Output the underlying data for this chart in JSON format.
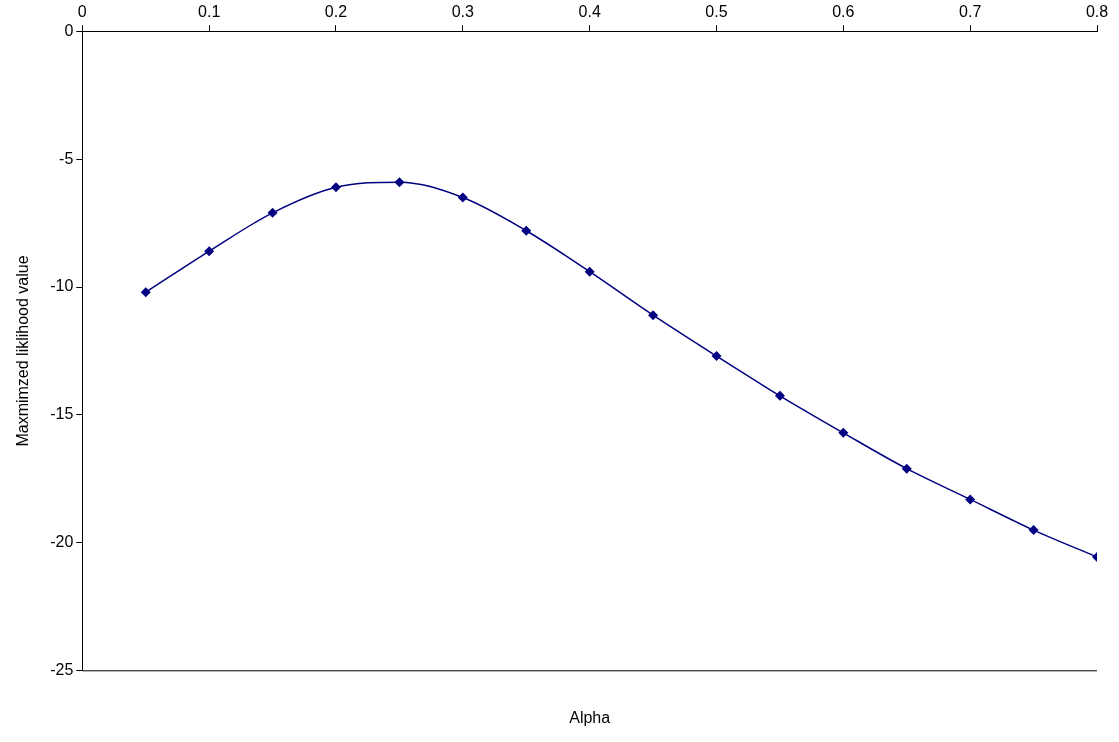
{
  "chart_data": {
    "type": "line",
    "xlabel": "Alpha",
    "ylabel": "Maxmimzed liklihood value",
    "x": [
      0.05,
      0.1,
      0.15,
      0.2,
      0.25,
      0.3,
      0.35,
      0.4,
      0.45,
      0.5,
      0.55,
      0.6,
      0.65,
      0.7,
      0.75,
      0.8
    ],
    "series": [
      {
        "color": "#000080",
        "values": [
          -10.2,
          -8.6,
          -7.1,
          -6.1,
          -5.9,
          -6.5,
          -7.8,
          -9.4,
          -11.1,
          -12.7,
          -14.25,
          -15.7,
          -17.1,
          -18.3,
          -19.5,
          -20.55
        ]
      }
    ],
    "xlim": [
      0,
      0.8
    ],
    "xticks": [
      0,
      0.1,
      0.2,
      0.3,
      0.4,
      0.5,
      0.6,
      0.7,
      0.8
    ],
    "ylim": [
      -25,
      0
    ],
    "yticks": [
      -25,
      -20,
      -15,
      -10,
      -5,
      0
    ],
    "marker": "diamond",
    "line_style": "solid",
    "grid": false,
    "legend": false
  }
}
